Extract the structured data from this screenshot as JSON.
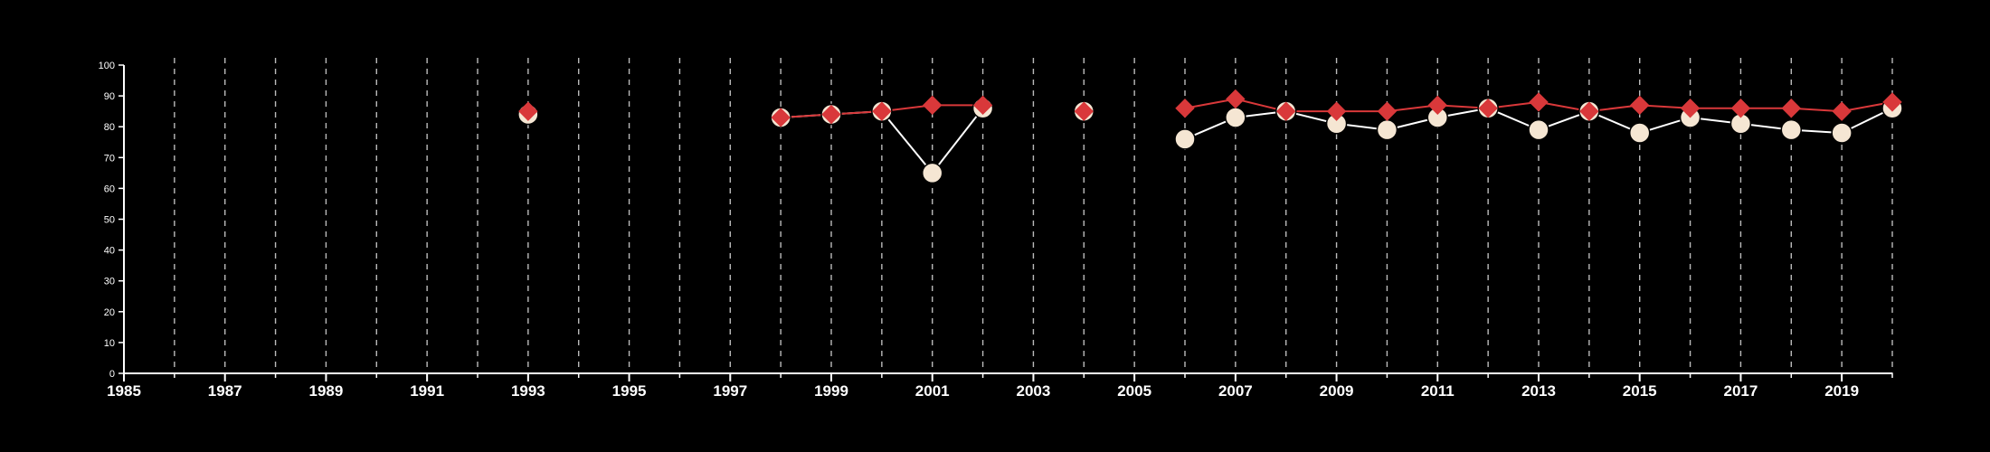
{
  "chart_data": {
    "type": "line",
    "title": "",
    "xlabel": "",
    "ylabel": "",
    "xlim": [
      1985,
      2020
    ],
    "ylim": [
      0,
      100
    ],
    "x_tick_labels": [
      "1985",
      "1987",
      "1989",
      "1991",
      "1993",
      "1995",
      "1997",
      "1999",
      "2001",
      "2003",
      "2005",
      "2007",
      "2009",
      "2011",
      "2013",
      "2015",
      "2017",
      "2019"
    ],
    "y_tick_labels": [
      "0",
      "10",
      "20",
      "30",
      "40",
      "50",
      "60",
      "70",
      "80",
      "90",
      "100"
    ],
    "vertical_gridlines": "dashed, every year 1986-2020",
    "series": [
      {
        "marker": "circle",
        "color": "#f5e6d3",
        "stroke": "#ffffff",
        "points": [
          [
            1993,
            84
          ],
          [
            1998,
            83
          ],
          [
            1999,
            84
          ],
          [
            2000,
            85
          ],
          [
            2001,
            65
          ],
          [
            2002,
            86
          ],
          [
            2004,
            85
          ],
          [
            2006,
            76
          ],
          [
            2007,
            83
          ],
          [
            2008,
            85
          ],
          [
            2009,
            81
          ],
          [
            2010,
            79
          ],
          [
            2011,
            83
          ],
          [
            2012,
            86
          ],
          [
            2013,
            79
          ],
          [
            2014,
            85
          ],
          [
            2015,
            78
          ],
          [
            2016,
            83
          ],
          [
            2017,
            81
          ],
          [
            2018,
            79
          ],
          [
            2019,
            78
          ],
          [
            2020,
            86
          ]
        ]
      },
      {
        "marker": "diamond",
        "color": "#d9383a",
        "stroke": "#d9383a",
        "points": [
          [
            1993,
            85
          ],
          [
            1998,
            83
          ],
          [
            1999,
            84
          ],
          [
            2000,
            85
          ],
          [
            2001,
            87
          ],
          [
            2002,
            87
          ],
          [
            2004,
            85
          ],
          [
            2006,
            86
          ],
          [
            2007,
            89
          ],
          [
            2008,
            85
          ],
          [
            2009,
            85
          ],
          [
            2010,
            85
          ],
          [
            2011,
            87
          ],
          [
            2012,
            86
          ],
          [
            2013,
            88
          ],
          [
            2014,
            85
          ],
          [
            2015,
            87
          ],
          [
            2016,
            86
          ],
          [
            2017,
            86
          ],
          [
            2018,
            86
          ],
          [
            2019,
            85
          ],
          [
            2020,
            88
          ]
        ]
      }
    ]
  }
}
